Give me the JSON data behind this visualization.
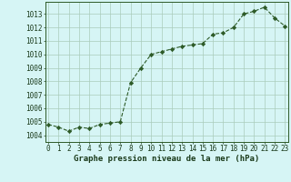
{
  "x": [
    0,
    1,
    2,
    3,
    4,
    5,
    6,
    7,
    8,
    9,
    10,
    11,
    12,
    13,
    14,
    15,
    16,
    17,
    18,
    19,
    20,
    21,
    22,
    23
  ],
  "y": [
    1004.8,
    1004.6,
    1004.3,
    1004.6,
    1004.5,
    1004.8,
    1004.9,
    1005.0,
    1007.9,
    1009.0,
    1010.0,
    1010.2,
    1010.4,
    1010.6,
    1010.7,
    1010.8,
    1011.5,
    1011.6,
    1012.0,
    1013.0,
    1013.2,
    1013.5,
    1012.7,
    1012.1
  ],
  "line_color": "#2d5a27",
  "marker": "D",
  "markersize": 2.2,
  "linewidth": 0.8,
  "linestyle": "--",
  "bg_color": "#d6f5f5",
  "grid_color": "#aaccbb",
  "title": "Graphe pression niveau de la mer (hPa)",
  "title_color": "#1a3a1a",
  "title_fontsize": 6.5,
  "xlabel_ticks": [
    "0",
    "1",
    "2",
    "3",
    "4",
    "5",
    "6",
    "7",
    "8",
    "9",
    "10",
    "11",
    "12",
    "13",
    "14",
    "15",
    "16",
    "17",
    "18",
    "19",
    "20",
    "21",
    "22",
    "23"
  ],
  "ylabel_ticks": [
    1004,
    1005,
    1006,
    1007,
    1008,
    1009,
    1010,
    1011,
    1012,
    1013
  ],
  "ylim": [
    1003.5,
    1013.9
  ],
  "xlim": [
    -0.3,
    23.3
  ],
  "tick_fontsize": 5.5,
  "tick_color": "#1a3a1a",
  "spine_color": "#2d5a27"
}
